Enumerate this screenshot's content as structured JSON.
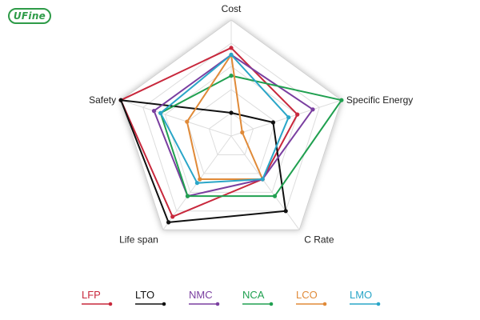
{
  "brand": {
    "logo_text": "UFine"
  },
  "chart_data": {
    "type": "radar",
    "axes": [
      "Cost",
      "Specific Energy",
      "C Rate",
      "Life span",
      "Safety"
    ],
    "scale": [
      0,
      5
    ],
    "levels": 5,
    "legend_position": "bottom",
    "series": [
      {
        "name": "LFP",
        "color": "#c8283c",
        "values": [
          3.8,
          3.0,
          2.3,
          4.3,
          5.0
        ]
      },
      {
        "name": "LTO",
        "color": "#111111",
        "values": [
          1.0,
          1.9,
          4.0,
          4.6,
          5.0
        ]
      },
      {
        "name": "NMC",
        "color": "#7a3fa0",
        "values": [
          3.5,
          3.7,
          2.3,
          3.2,
          3.5
        ]
      },
      {
        "name": "NCA",
        "color": "#20a050",
        "values": [
          2.6,
          5.0,
          3.2,
          3.2,
          3.2
        ]
      },
      {
        "name": "LCO",
        "color": "#e08a38",
        "values": [
          3.5,
          0.5,
          2.3,
          2.3,
          2.0
        ]
      },
      {
        "name": "LMO",
        "color": "#2aa6c8",
        "values": [
          3.5,
          2.6,
          2.3,
          2.5,
          3.2
        ]
      }
    ]
  }
}
